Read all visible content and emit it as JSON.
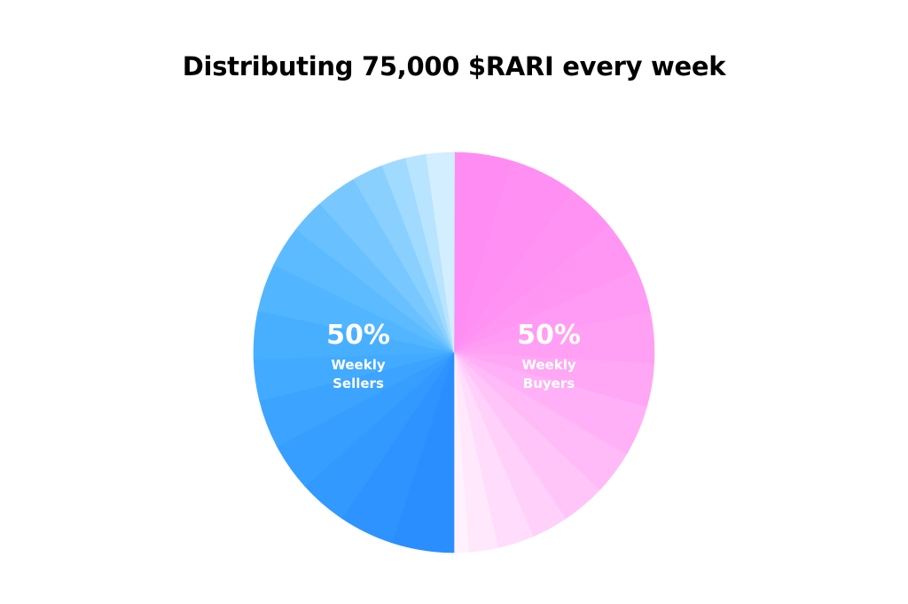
{
  "chart_data": {
    "type": "pie",
    "title": "Distributing 75,000 $RARI every week",
    "slices": [
      {
        "label": "Weekly Buyers",
        "value": 50,
        "display": "50%",
        "label_lines": [
          "Weekly",
          "Buyers"
        ],
        "color": "#ff8cf2",
        "sub_shades": [
          "#ff8cf2",
          "#ff8ff2",
          "#ff92f3",
          "#ff96f3",
          "#ff9bf4",
          "#ffa0f4",
          "#ffa6f5",
          "#ffb0f6",
          "#ffbaf7",
          "#ffc5f8",
          "#ffd0f9",
          "#ffdcfb",
          "#ffe8fc",
          "#fff1fd"
        ]
      },
      {
        "label": "Weekly Sellers",
        "value": 50,
        "display": "50%",
        "label_lines": [
          "Weekly",
          "Sellers"
        ],
        "color": "#2a8eff",
        "sub_shades": [
          "#2a8eff",
          "#2e93ff",
          "#3299ff",
          "#369eff",
          "#3ca4ff",
          "#42aaff",
          "#48afff",
          "#52b5ff",
          "#5cbaff",
          "#68c0ff",
          "#78c8ff",
          "#8ad0ff",
          "#a0daff",
          "#b8e4ff",
          "#d2eeff"
        ]
      }
    ]
  }
}
